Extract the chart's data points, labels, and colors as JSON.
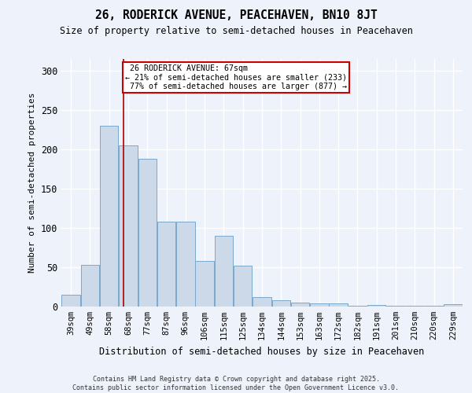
{
  "title": "26, RODERICK AVENUE, PEACEHAVEN, BN10 8JT",
  "subtitle": "Size of property relative to semi-detached houses in Peacehaven",
  "xlabel": "Distribution of semi-detached houses by size in Peacehaven",
  "ylabel": "Number of semi-detached properties",
  "bar_color": "#ccd9e8",
  "bar_edge_color": "#7aa8cc",
  "categories": [
    "39sqm",
    "49sqm",
    "58sqm",
    "68sqm",
    "77sqm",
    "87sqm",
    "96sqm",
    "106sqm",
    "115sqm",
    "125sqm",
    "134sqm",
    "144sqm",
    "153sqm",
    "163sqm",
    "172sqm",
    "182sqm",
    "191sqm",
    "201sqm",
    "210sqm",
    "220sqm",
    "229sqm"
  ],
  "values": [
    15,
    53,
    230,
    205,
    188,
    108,
    108,
    58,
    90,
    52,
    12,
    8,
    5,
    4,
    4,
    1,
    2,
    1,
    1,
    1,
    3
  ],
  "ylim": [
    0,
    315
  ],
  "yticks": [
    0,
    50,
    100,
    150,
    200,
    250,
    300
  ],
  "property_label": "26 RODERICK AVENUE: 67sqm",
  "pct_smaller": 21,
  "pct_larger": 77,
  "n_smaller": 233,
  "n_larger": 877,
  "vline_color": "#aa0000",
  "annotation_box_edge": "#cc0000",
  "background_color": "#eef2fa",
  "grid_color": "#ffffff",
  "footer_text": "Contains HM Land Registry data © Crown copyright and database right 2025.\nContains public sector information licensed under the Open Government Licence v3.0.",
  "vline_x_index": 2.75
}
